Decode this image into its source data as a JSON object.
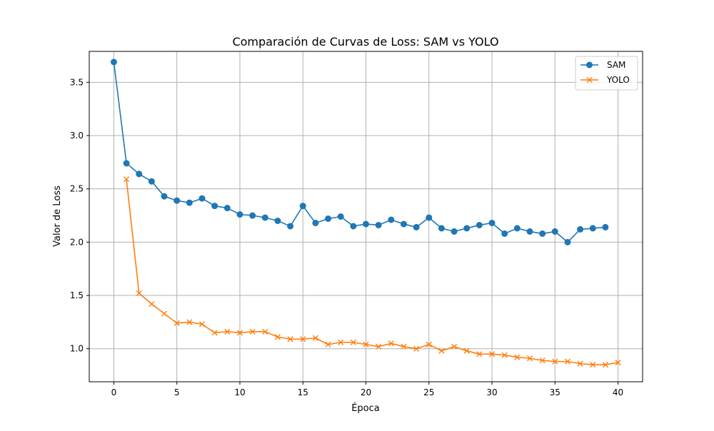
{
  "chart_data": {
    "type": "line",
    "title": "Comparación de Curvas de Loss: SAM vs YOLO",
    "xlabel": "Época",
    "ylabel": "Valor de Loss",
    "xlim": [
      -1.95,
      41.95
    ],
    "ylim": [
      0.69,
      3.79
    ],
    "xticks": [
      0,
      5,
      10,
      15,
      20,
      25,
      30,
      35,
      40
    ],
    "yticks": [
      1.0,
      1.5,
      2.0,
      2.5,
      3.0,
      3.5
    ],
    "grid": true,
    "legend_position": "top-right",
    "series": [
      {
        "name": "SAM",
        "color": "#1f77b4",
        "marker": "circle",
        "x": [
          0,
          1,
          2,
          3,
          4,
          5,
          6,
          7,
          8,
          9,
          10,
          11,
          12,
          13,
          14,
          15,
          16,
          17,
          18,
          19,
          20,
          21,
          22,
          23,
          24,
          25,
          26,
          27,
          28,
          29,
          30,
          31,
          32,
          33,
          34,
          35,
          36,
          37,
          38,
          39
        ],
        "values": [
          3.69,
          2.74,
          2.64,
          2.57,
          2.43,
          2.39,
          2.37,
          2.41,
          2.34,
          2.32,
          2.26,
          2.25,
          2.23,
          2.2,
          2.15,
          2.34,
          2.18,
          2.22,
          2.24,
          2.15,
          2.17,
          2.16,
          2.21,
          2.17,
          2.14,
          2.23,
          2.13,
          2.1,
          2.13,
          2.16,
          2.18,
          2.08,
          2.13,
          2.1,
          2.08,
          2.1,
          2.0,
          2.12,
          2.13,
          2.14
        ]
      },
      {
        "name": "YOLO",
        "color": "#ff7f0e",
        "marker": "x",
        "x": [
          1,
          2,
          3,
          4,
          5,
          6,
          7,
          8,
          9,
          10,
          11,
          12,
          13,
          14,
          15,
          16,
          17,
          18,
          19,
          20,
          21,
          22,
          23,
          24,
          25,
          26,
          27,
          28,
          29,
          30,
          31,
          32,
          33,
          34,
          35,
          36,
          37,
          38,
          39,
          40
        ],
        "values": [
          2.59,
          1.52,
          1.42,
          1.33,
          1.24,
          1.25,
          1.23,
          1.15,
          1.16,
          1.15,
          1.16,
          1.16,
          1.11,
          1.09,
          1.09,
          1.1,
          1.04,
          1.06,
          1.06,
          1.04,
          1.02,
          1.05,
          1.02,
          1.0,
          1.04,
          0.98,
          1.02,
          0.98,
          0.95,
          0.95,
          0.94,
          0.92,
          0.91,
          0.89,
          0.88,
          0.88,
          0.86,
          0.85,
          0.85,
          0.87
        ]
      }
    ]
  }
}
